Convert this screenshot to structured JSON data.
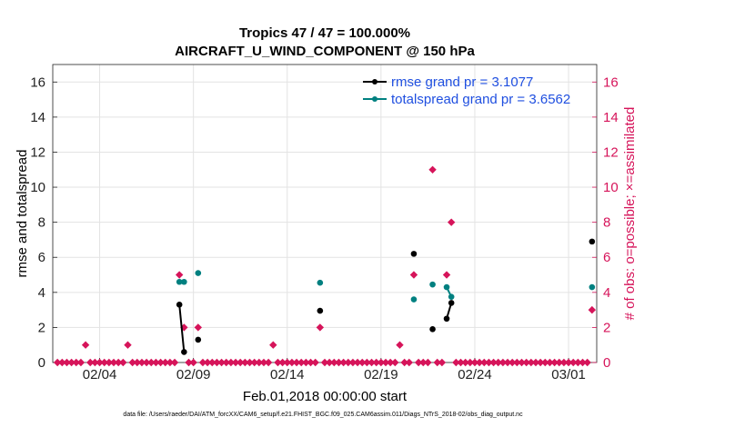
{
  "chart_data": {
    "type": "scatter",
    "title": "Tropics 47 / 47 = 100.000%",
    "subtitle": "AIRCRAFT_U_WIND_COMPONENT @ 150 hPa",
    "xlabel": "Feb.01,2018 00:00:00 start",
    "ylabel_left": "rmse and totalspread",
    "ylabel_right": "# of obs: o=possible; ×=assimilated",
    "footnote": "data file: /Users/raeder/DAI/ATM_forcXX/CAM6_setup/f.e21.FHIST_BGC.f09_025.CAM6assim.011/Diags_NTrS_2018-02/obs_diag_output.nc",
    "xlim": [
      1,
      30
    ],
    "ylim_left": [
      0,
      17
    ],
    "ylim_right": [
      0,
      17
    ],
    "x_ticks": [
      3.5,
      8.5,
      13.5,
      18.5,
      23.5,
      28.5
    ],
    "x_tick_labels": [
      "02/04",
      "02/09",
      "02/14",
      "02/19",
      "02/24",
      "03/01"
    ],
    "y_ticks_left": [
      0,
      2,
      4,
      6,
      8,
      10,
      12,
      14,
      16
    ],
    "y_ticks_right": [
      0,
      2,
      4,
      6,
      8,
      10,
      12,
      14,
      16
    ],
    "grid": true,
    "colors": {
      "rmse": "#000000",
      "totalspread": "#008080",
      "obs": "#d6145a",
      "legend_text": "#1f4fe0"
    },
    "legend": [
      {
        "name": "rmse grand pr = 3.1077",
        "key": "rmse"
      },
      {
        "name": "totalspread grand pr = 3.6562",
        "key": "totalspread"
      }
    ],
    "legend_location": "top-right",
    "series": [
      {
        "name": "rmse",
        "points": [
          [
            7.75,
            3.3
          ],
          [
            8.0,
            0.6
          ],
          [
            8.75,
            1.3
          ],
          [
            15.25,
            2.95
          ],
          [
            20.25,
            6.2
          ],
          [
            21.25,
            1.9
          ],
          [
            22.0,
            2.5
          ],
          [
            22.25,
            3.4
          ],
          [
            29.75,
            6.9
          ]
        ]
      },
      {
        "name": "totalspread",
        "points": [
          [
            7.75,
            4.6
          ],
          [
            8.0,
            4.6
          ],
          [
            8.75,
            5.1
          ],
          [
            15.25,
            4.55
          ],
          [
            20.25,
            3.6
          ],
          [
            21.25,
            4.45
          ],
          [
            22.0,
            4.3
          ],
          [
            22.25,
            3.75
          ],
          [
            29.75,
            4.3
          ]
        ]
      },
      {
        "name": "obs_possible",
        "points": [
          [
            1.25,
            0
          ],
          [
            1.5,
            0
          ],
          [
            1.75,
            0
          ],
          [
            2.0,
            0
          ],
          [
            2.25,
            0
          ],
          [
            2.5,
            0
          ],
          [
            2.75,
            1
          ],
          [
            3.0,
            0
          ],
          [
            3.25,
            0
          ],
          [
            3.5,
            0
          ],
          [
            3.75,
            0
          ],
          [
            4.0,
            0
          ],
          [
            4.25,
            0
          ],
          [
            4.5,
            0
          ],
          [
            4.75,
            0
          ],
          [
            5.0,
            1
          ],
          [
            5.25,
            0
          ],
          [
            5.5,
            0
          ],
          [
            5.75,
            0
          ],
          [
            6.0,
            0
          ],
          [
            6.25,
            0
          ],
          [
            6.5,
            0
          ],
          [
            6.75,
            0
          ],
          [
            7.0,
            0
          ],
          [
            7.25,
            0
          ],
          [
            7.5,
            0
          ],
          [
            7.75,
            5
          ],
          [
            8.0,
            2
          ],
          [
            8.25,
            0
          ],
          [
            8.5,
            0
          ],
          [
            8.75,
            2
          ],
          [
            9.0,
            0
          ],
          [
            9.25,
            0
          ],
          [
            9.5,
            0
          ],
          [
            9.75,
            0
          ],
          [
            10.0,
            0
          ],
          [
            10.25,
            0
          ],
          [
            10.5,
            0
          ],
          [
            10.75,
            0
          ],
          [
            11.0,
            0
          ],
          [
            11.25,
            0
          ],
          [
            11.5,
            0
          ],
          [
            11.75,
            0
          ],
          [
            12.0,
            0
          ],
          [
            12.25,
            0
          ],
          [
            12.5,
            0
          ],
          [
            12.75,
            1
          ],
          [
            13.0,
            0
          ],
          [
            13.25,
            0
          ],
          [
            13.5,
            0
          ],
          [
            13.75,
            0
          ],
          [
            14.0,
            0
          ],
          [
            14.25,
            0
          ],
          [
            14.5,
            0
          ],
          [
            14.75,
            0
          ],
          [
            15.0,
            0
          ],
          [
            15.25,
            2
          ],
          [
            15.5,
            0
          ],
          [
            15.75,
            0
          ],
          [
            16.0,
            0
          ],
          [
            16.25,
            0
          ],
          [
            16.5,
            0
          ],
          [
            16.75,
            0
          ],
          [
            17.0,
            0
          ],
          [
            17.25,
            0
          ],
          [
            17.5,
            0
          ],
          [
            17.75,
            0
          ],
          [
            18.0,
            0
          ],
          [
            18.25,
            0
          ],
          [
            18.5,
            0
          ],
          [
            18.75,
            0
          ],
          [
            19.0,
            0
          ],
          [
            19.25,
            0
          ],
          [
            19.5,
            1
          ],
          [
            19.75,
            0
          ],
          [
            20.0,
            0
          ],
          [
            20.25,
            5
          ],
          [
            20.5,
            0
          ],
          [
            20.75,
            0
          ],
          [
            21.0,
            0
          ],
          [
            21.25,
            11
          ],
          [
            21.5,
            0
          ],
          [
            21.75,
            0
          ],
          [
            22.0,
            5
          ],
          [
            22.25,
            8
          ],
          [
            22.5,
            0
          ],
          [
            22.75,
            0
          ],
          [
            23.0,
            0
          ],
          [
            23.25,
            0
          ],
          [
            23.5,
            0
          ],
          [
            23.75,
            0
          ],
          [
            24.0,
            0
          ],
          [
            24.25,
            0
          ],
          [
            24.5,
            0
          ],
          [
            24.75,
            0
          ],
          [
            25.0,
            0
          ],
          [
            25.25,
            0
          ],
          [
            25.5,
            0
          ],
          [
            25.75,
            0
          ],
          [
            26.0,
            0
          ],
          [
            26.25,
            0
          ],
          [
            26.5,
            0
          ],
          [
            26.75,
            0
          ],
          [
            27.0,
            0
          ],
          [
            27.25,
            0
          ],
          [
            27.5,
            0
          ],
          [
            27.75,
            0
          ],
          [
            28.0,
            0
          ],
          [
            28.25,
            0
          ],
          [
            28.5,
            0
          ],
          [
            28.75,
            0
          ],
          [
            29.0,
            0
          ],
          [
            29.25,
            0
          ],
          [
            29.5,
            0
          ],
          [
            29.75,
            3
          ]
        ]
      }
    ]
  }
}
